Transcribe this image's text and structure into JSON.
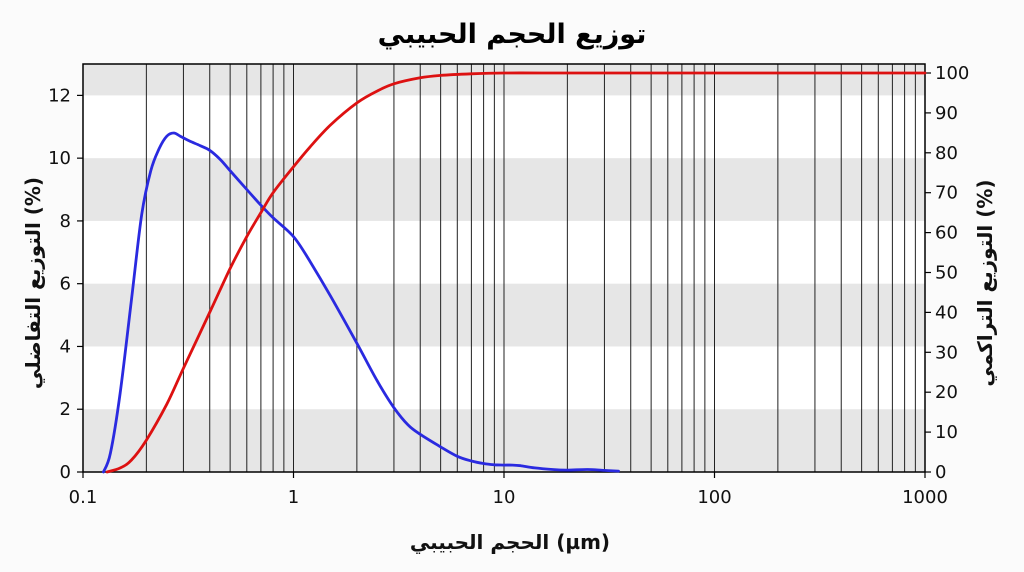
{
  "chart_data": {
    "type": "line",
    "title": "توزيع الحجم الحبيبي",
    "xlabel": "الحجم الحبيبي (µm)",
    "ylabel_left": "التوزيع التفاضلي (%)",
    "ylabel_right": "التوزيع التراكمي (%)",
    "x_scale": "log",
    "xlim": [
      0.1,
      1000
    ],
    "ylim_left": [
      0,
      13
    ],
    "ylim_right": [
      0,
      100
    ],
    "x_ticks": [
      "0.1",
      "1",
      "10",
      "100",
      "1000"
    ],
    "y_ticks_left": [
      "0",
      "2",
      "4",
      "6",
      "8",
      "10",
      "12"
    ],
    "y_ticks_right": [
      "0",
      "10",
      "20",
      "30",
      "40",
      "50",
      "60",
      "70",
      "80",
      "90",
      "100"
    ],
    "grid": true,
    "series": [
      {
        "axis": "left",
        "color": "#2a2ae0",
        "x": [
          0.125,
          0.135,
          0.15,
          0.17,
          0.19,
          0.21,
          0.23,
          0.25,
          0.27,
          0.29,
          0.32,
          0.36,
          0.4,
          0.45,
          0.5,
          0.6,
          0.7,
          0.8,
          1.0,
          1.2,
          1.5,
          2.0,
          2.5,
          3.0,
          3.5,
          4.0,
          5.0,
          6.0,
          7.0,
          8.0,
          9.0,
          10.0,
          11.0,
          12.0,
          14.0,
          17.0,
          20.0,
          25.0,
          30.0,
          35.0
        ],
        "values": [
          0.0,
          0.6,
          2.5,
          5.5,
          8.2,
          9.6,
          10.3,
          10.7,
          10.8,
          10.7,
          10.55,
          10.4,
          10.25,
          9.95,
          9.6,
          9.0,
          8.5,
          8.1,
          7.5,
          6.7,
          5.6,
          4.1,
          2.9,
          2.05,
          1.5,
          1.2,
          0.8,
          0.5,
          0.35,
          0.27,
          0.23,
          0.22,
          0.22,
          0.2,
          0.13,
          0.08,
          0.06,
          0.08,
          0.05,
          0.03
        ]
      },
      {
        "axis": "right",
        "color": "#dd1111",
        "x": [
          0.13,
          0.15,
          0.17,
          0.2,
          0.25,
          0.3,
          0.4,
          0.5,
          0.6,
          0.7,
          0.8,
          1.0,
          1.2,
          1.5,
          2.0,
          2.5,
          3.0,
          4.0,
          5.0,
          7.0,
          10.0,
          15.0,
          20.0,
          40.0,
          100.0,
          1000.0
        ],
        "values": [
          0.0,
          1.0,
          3.0,
          8.0,
          17.0,
          26.0,
          40.0,
          51.0,
          59.0,
          65.0,
          70.0,
          76.5,
          81.5,
          87.0,
          92.5,
          95.5,
          97.3,
          98.8,
          99.4,
          99.8,
          100.0,
          100.0,
          100.0,
          100.0,
          100.0,
          100.0
        ]
      }
    ]
  }
}
